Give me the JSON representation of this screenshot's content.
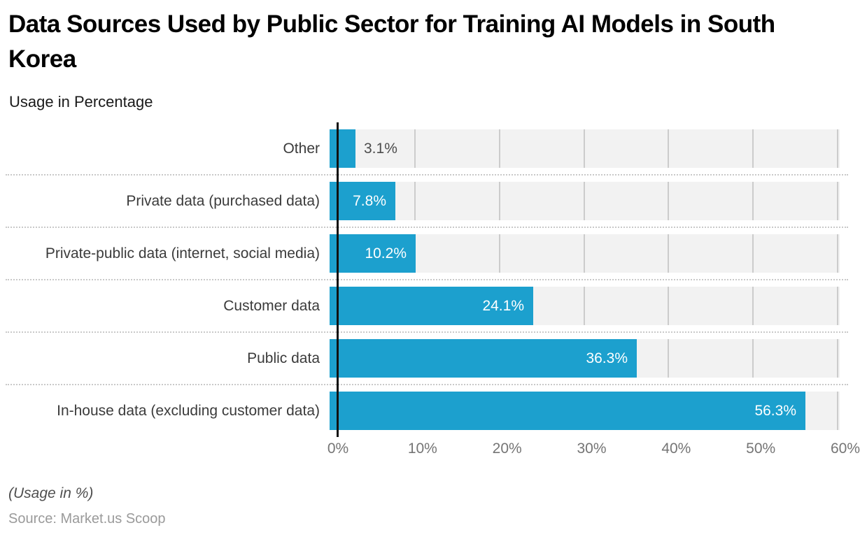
{
  "header": {
    "title": "Data Sources Used by Public Sector for Training AI Models in South Korea",
    "subtitle": "Usage in Percentage"
  },
  "chart_data": {
    "type": "bar",
    "orientation": "horizontal",
    "title": "Data Sources Used by Public Sector for Training AI Models in South Korea",
    "subtitle": "Usage in Percentage",
    "categories": [
      "Other",
      "Private data (purchased data)",
      "Private-public data (internet, social media)",
      "Customer data",
      "Public data",
      "In-house data (excluding customer data)"
    ],
    "values": [
      3.1,
      7.8,
      10.2,
      24.1,
      36.3,
      56.3
    ],
    "value_labels": [
      "3.1%",
      "7.8%",
      "10.2%",
      "24.1%",
      "36.3%",
      "56.3%"
    ],
    "x_ticks": [
      0,
      10,
      20,
      30,
      40,
      50,
      60
    ],
    "x_tick_labels": [
      "0%",
      "10%",
      "20%",
      "30%",
      "40%",
      "50%",
      "60%"
    ],
    "xlim": [
      0,
      60
    ],
    "grid": "vertical-gridlines-on",
    "legend": "none",
    "row_separators": "dotted"
  },
  "footer": {
    "note": "(Usage in %)",
    "source": "Source: Market.us Scoop"
  },
  "colors": {
    "bar": "#1CA0CE",
    "track": "#F2F2F2",
    "gridline": "#CCCCCC",
    "axis_line": "#111111",
    "separator": "#C9C9C9",
    "category_text": "#3B3B3B",
    "value_text_inside": "#FFFFFF",
    "value_text_outside": "#4C4C4C",
    "tick_text": "#757575",
    "title_text": "#000000",
    "note_text": "#4F4F4F",
    "source_text": "#9A9A9A"
  }
}
